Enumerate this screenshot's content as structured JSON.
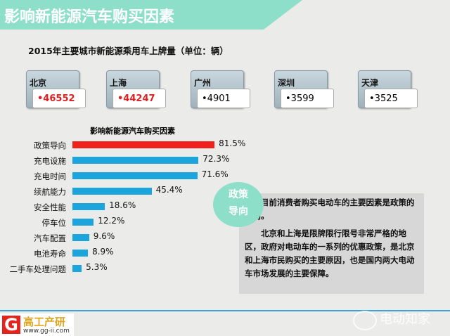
{
  "header": {
    "title": "影响新能源汽车购买因素"
  },
  "subtitle": "2015年主要城市新能源乘用车上牌量（单位：辆）",
  "cities": [
    {
      "name": "北京",
      "value": "•46552",
      "highlight": true
    },
    {
      "name": "上海",
      "value": "•44247",
      "highlight": true
    },
    {
      "name": "广州",
      "value": "•4901",
      "highlight": false
    },
    {
      "name": "深圳",
      "value": "•3599",
      "highlight": false
    },
    {
      "name": "天津",
      "value": "•3525",
      "highlight": false
    }
  ],
  "chart_data": {
    "type": "bar",
    "orientation": "horizontal",
    "title": "影响新能源汽车购买因素",
    "categories": [
      "政策导向",
      "充电设施",
      "充电时间",
      "续航能力",
      "安全性能",
      "停车位",
      "汽车配置",
      "电池寿命",
      "二手车处理问题"
    ],
    "values": [
      81.5,
      72.3,
      71.6,
      45.4,
      18.6,
      12.2,
      9.6,
      8.9,
      5.3
    ],
    "labels": [
      "81.5%",
      "72.3%",
      "71.6%",
      "45.4%",
      "18.6%",
      "12.2%",
      "9.6%",
      "8.9%",
      "5.3%"
    ],
    "colors": {
      "highlight": "#f0201c",
      "default": "#1ca4dd"
    }
  },
  "circle": {
    "line1": "政策",
    "line2": "导向"
  },
  "note": {
    "p1": "目前消费者购买电动车的主要因素是政策的导向。",
    "p2": "北京和上海是限牌限行限号非常严格的地区，政府对电动车的一系列的优惠政策，是北京和上海市民购买的主要原因，也是国内两大电动车市场发展的主要保障。"
  },
  "logo": {
    "text": "高工产研",
    "url": "www.gg-ii.com",
    "mark": "G"
  },
  "watermark": "电动知家"
}
